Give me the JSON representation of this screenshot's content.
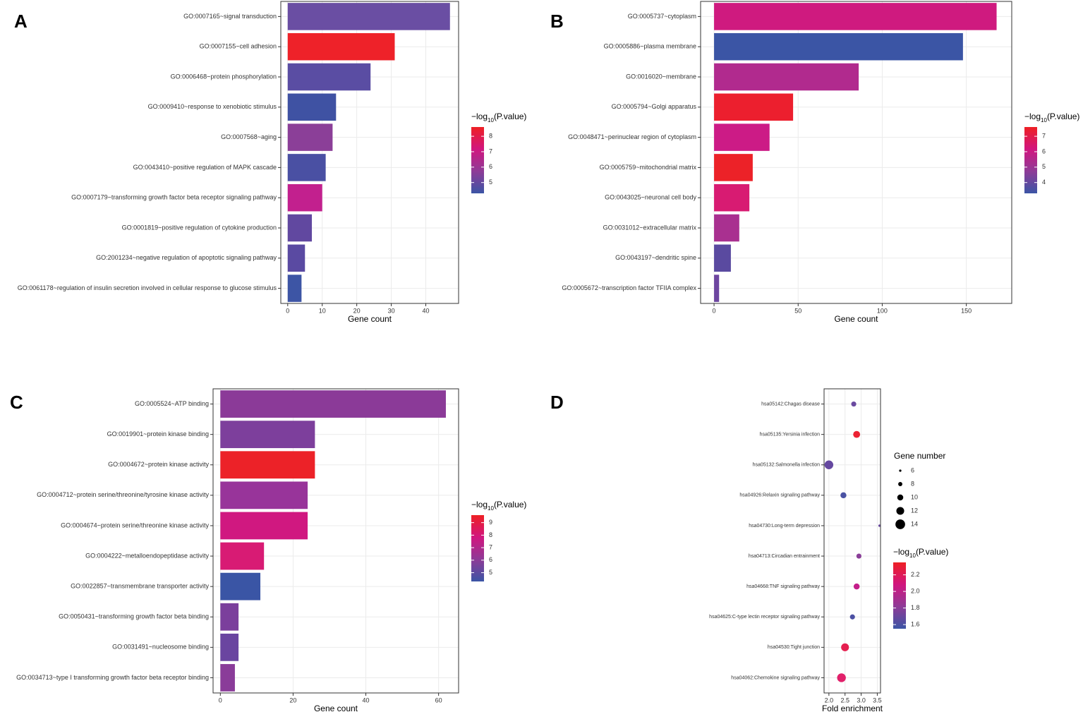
{
  "chart_data": [
    {
      "type": "barh",
      "panel": "A",
      "x_label": "Gene count",
      "categories": [
        "GO:0007165~signal transduction",
        "GO:0007155~cell adhesion",
        "GO:0006468~protein phosphorylation",
        "GO:0009410~response to xenobiotic stimulus",
        "GO:0007568~aging",
        "GO:0043410~positive regulation of MAPK cascade",
        "GO:0007179~transforming growth factor beta receptor signaling pathway",
        "GO:0001819~positive regulation of cytokine production",
        "GO:2001234~negative regulation of apoptotic signaling pathway",
        "GO:0061178~regulation of insulin secretion involved in cellular response to glucose stimulus"
      ],
      "values": [
        47,
        31,
        24,
        14,
        13,
        11,
        10,
        7,
        5,
        4
      ],
      "colors": [
        "#6a4ea3",
        "#ee2229",
        "#5a4da3",
        "#3f52a3",
        "#8b3f98",
        "#4a50a3",
        "#c2208e",
        "#6148a0",
        "#5a4aa2",
        "#3d55a5"
      ],
      "xlim": [
        -2,
        49.5
      ],
      "xticks": [
        0,
        10,
        20,
        30,
        40
      ],
      "grid": true,
      "legend_title": [
        "−log",
        "10",
        "(P.value)"
      ],
      "clim": [
        4.3,
        8.6
      ],
      "cticks": [
        5,
        6,
        7,
        8
      ],
      "colorscale": [
        "#3b55a5",
        "#8e3b97",
        "#d1167f",
        "#ee2024"
      ]
    },
    {
      "type": "barh",
      "panel": "B",
      "x_label": "Gene count",
      "categories": [
        "GO:0005737~cytoplasm",
        "GO:0005886~plasma membrane",
        "GO:0016020~membrane",
        "GO:0005794~Golgi apparatus",
        "GO:0048471~perinuclear region of cytoplasm",
        "GO:0005759~mitochondrial matrix",
        "GO:0043025~neuronal cell body",
        "GO:0031012~extracellular matrix",
        "GO:0043197~dendritic spine",
        "GO:0005672~transcription factor TFIIA complex"
      ],
      "values": [
        168,
        148,
        86,
        47,
        33,
        23,
        21,
        15,
        10,
        3
      ],
      "colors": [
        "#cf1a7f",
        "#3b55a5",
        "#b12a8e",
        "#ec1f2e",
        "#cc1b86",
        "#ec2228",
        "#d81b72",
        "#a93090",
        "#5a4aa0",
        "#6d46a0"
      ],
      "xlim": [
        -8,
        177
      ],
      "xticks": [
        0,
        50,
        100,
        150
      ],
      "grid": true,
      "legend_title": [
        "−log",
        "10",
        "(P.value)"
      ],
      "clim": [
        3.3,
        7.6
      ],
      "cticks": [
        4,
        5,
        6,
        7
      ],
      "colorscale": [
        "#3b55a5",
        "#8e3b97",
        "#d1167f",
        "#ee2024"
      ]
    },
    {
      "type": "barh",
      "panel": "C",
      "x_label": "Gene count",
      "categories": [
        "GO:0005524~ATP binding",
        "GO:0019901~protein kinase binding",
        "GO:0004672~protein kinase activity",
        "GO:0004712~protein serine/threonine/tyrosine kinase activity",
        "GO:0004674~protein serine/threonine kinase activity",
        "GO:0004222~metalloendopeptidase activity",
        "GO:0022857~transmembrane transporter activity",
        "GO:0050431~transforming growth factor beta binding",
        "GO:0031491~nucleosome binding",
        "GO:0034713~type I transforming growth factor beta receptor binding"
      ],
      "values": [
        62,
        26,
        26,
        24,
        24,
        12,
        11,
        5,
        5,
        4
      ],
      "colors": [
        "#8b3a98",
        "#7d3f9c",
        "#ec2228",
        "#98349a",
        "#d01880",
        "#d81b74",
        "#3a55a5",
        "#7b3f9c",
        "#6a45a0",
        "#8a3c99"
      ],
      "xlim": [
        -2,
        65.5
      ],
      "xticks": [
        0,
        20,
        40,
        60
      ],
      "grid": true,
      "legend_title": [
        "−log",
        "10",
        "(P.value)"
      ],
      "clim": [
        4.3,
        9.6
      ],
      "cticks": [
        5,
        6,
        7,
        8,
        9
      ],
      "colorscale": [
        "#3b55a5",
        "#8e3b97",
        "#d1167f",
        "#ee2024"
      ]
    },
    {
      "type": "dot",
      "panel": "D",
      "x_label": "Fold enrichment",
      "categories": [
        "hsa05142:Chagas disease",
        "hsa05135:Yersinia infection",
        "hsa05132:Salmonella infection",
        "hsa04926:Relaxin signaling pathway",
        "hsa04730:Long-term depression",
        "hsa04713:Circadian entrainment",
        "hsa04668:TNF signaling pathway",
        "hsa04625:C-type lectin receptor signaling pathway",
        "hsa04530:Tight junction",
        "hsa04062:Chemokine signaling pathway"
      ],
      "values": [
        2.77,
        2.86,
        2.0,
        2.45,
        3.57,
        2.93,
        2.86,
        2.73,
        2.5,
        2.39
      ],
      "sizes": [
        9,
        11,
        13,
        10,
        6,
        9,
        10,
        9,
        12,
        13
      ],
      "colors": [
        "#6a4aa0",
        "#ec2233",
        "#6548a0",
        "#4a52a3",
        "#6a4aa0",
        "#8a3e98",
        "#c41f8a",
        "#4c50a3",
        "#e51f4f",
        "#e1206a"
      ],
      "xlim": [
        1.85,
        3.6
      ],
      "xticks": [
        {
          "value": 2,
          "label": "2.0"
        },
        2.5,
        {
          "value": 3,
          "label": "3.0"
        },
        3.5
      ],
      "grid": true,
      "size_legend": {
        "title": "Gene number",
        "values": [
          6,
          8,
          10,
          12,
          14
        ]
      },
      "legend_title": [
        "−log",
        "10",
        "(P.value)"
      ],
      "clim": [
        1.55,
        2.35
      ],
      "cticks": [
        1.6,
        1.8,
        {
          "value": 2,
          "label": "2.0"
        },
        2.2
      ],
      "colorscale": [
        "#3b55a5",
        "#8e3b97",
        "#d1167f",
        "#ee2024"
      ]
    }
  ]
}
